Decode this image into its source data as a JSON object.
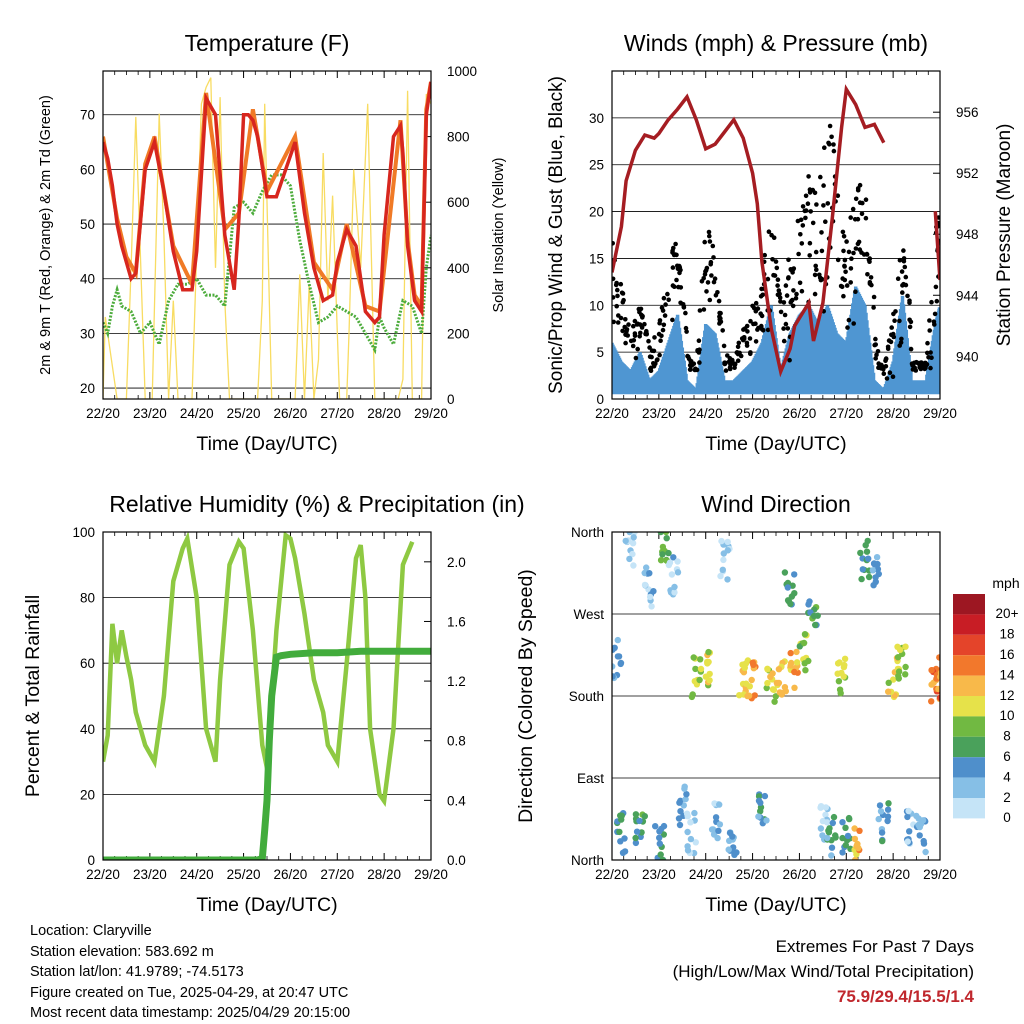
{
  "x_ticks": [
    "22/20",
    "23/20",
    "24/20",
    "25/20",
    "26/20",
    "27/20",
    "28/20",
    "29/20"
  ],
  "info": {
    "location": "Location: Claryville",
    "elevation": "Station elevation: 583.692 m",
    "latlon": "Station lat/lon: 41.9789; -74.5173",
    "created": "Figure created on Tue, 2025-04-29, at 20:47 UTC",
    "recent": "Most recent data timestamp: 2025/04/29 20:15:00"
  },
  "extremes": {
    "title": "Extremes For Past 7 Days",
    "subtitle": "(High/Low/Max Wind/Total Precipitation)",
    "values": "75.9/29.4/15.5/1.4"
  },
  "chart_data": [
    {
      "type": "line",
      "title": "Temperature (F)",
      "xlabel": "Time (Day/UTC)",
      "ylabel": "2m & 9m T (Red, Orange) & 2m Td (Green)",
      "ylabel_right": "Solar Insolation (Yellow)",
      "x_unit": "days since 22/20",
      "xlim": [
        0,
        7
      ],
      "ylim": [
        18,
        78
      ],
      "yticks": [
        20,
        30,
        40,
        50,
        60,
        70
      ],
      "ylim_right": [
        0,
        1000
      ],
      "yticks_right": [
        0,
        200,
        400,
        600,
        800,
        1000
      ],
      "colors": {
        "t2m": "#d7261e",
        "t9m": "#f07a26",
        "td": "#4dac3c",
        "solar": "#f8dc62"
      },
      "series": [
        {
          "name": "2m T",
          "x": [
            0,
            0.1,
            0.2,
            0.3,
            0.4,
            0.5,
            0.6,
            0.7,
            0.9,
            1.1,
            1.3,
            1.5,
            1.7,
            1.9,
            2.0,
            2.2,
            2.4,
            2.6,
            2.8,
            2.9,
            3.0,
            3.1,
            3.2,
            3.3,
            3.5,
            3.7,
            3.9,
            4.1,
            4.3,
            4.5,
            4.7,
            4.9,
            5.0,
            5.2,
            5.4,
            5.6,
            5.8,
            5.9,
            6.0,
            6.2,
            6.35,
            6.4,
            6.5,
            6.65,
            6.8,
            6.9,
            7.0
          ],
          "values": [
            65,
            62,
            57,
            50,
            46,
            43,
            40,
            41,
            60,
            65,
            56,
            45,
            38,
            38,
            45,
            73,
            70,
            48,
            38,
            51,
            70,
            70,
            69,
            66,
            55,
            55,
            60,
            65,
            52,
            42,
            36,
            37,
            43,
            49,
            46,
            34,
            32,
            33,
            48,
            66,
            68,
            63,
            46,
            36,
            34,
            70,
            76
          ]
        },
        {
          "name": "9m T",
          "x": [
            0,
            0.3,
            0.5,
            0.7,
            0.9,
            1.1,
            1.5,
            1.9,
            2.2,
            2.6,
            2.9,
            3.2,
            3.5,
            4.1,
            4.5,
            4.9,
            5.2,
            5.6,
            5.9,
            6.35,
            6.5,
            6.65,
            6.8,
            6.9,
            7.0
          ],
          "values": [
            66,
            51,
            44,
            41,
            61,
            66,
            46,
            39,
            74,
            49,
            52,
            71,
            56,
            66,
            43,
            38,
            50,
            35,
            34,
            69,
            47,
            37,
            35,
            71,
            76
          ]
        },
        {
          "name": "2m Td",
          "x": [
            0,
            0.1,
            0.2,
            0.3,
            0.4,
            0.6,
            0.8,
            1.0,
            1.2,
            1.4,
            1.6,
            1.8,
            2.0,
            2.2,
            2.4,
            2.6,
            2.8,
            3.0,
            3.2,
            3.4,
            3.6,
            3.8,
            4.0,
            4.2,
            4.4,
            4.6,
            4.8,
            5.0,
            5.2,
            5.4,
            5.6,
            5.8,
            5.9,
            6.0,
            6.2,
            6.4,
            6.6,
            6.8,
            6.9,
            7.0
          ],
          "values": [
            32,
            30,
            35,
            38,
            35,
            34,
            30,
            32,
            28,
            36,
            39,
            39,
            40,
            37,
            37,
            35,
            53,
            54,
            52,
            56,
            59,
            59,
            57,
            47,
            39,
            32,
            33,
            35,
            34,
            33,
            30,
            27,
            33,
            31,
            28,
            36,
            35,
            30,
            42,
            48
          ]
        },
        {
          "name": "Solar",
          "axis": "right",
          "x": [
            0,
            0.05,
            0.3,
            0.5,
            0.6,
            0.7,
            0.9,
            1.05,
            1.2,
            1.3,
            1.4,
            1.5,
            1.6,
            1.7,
            1.9,
            2.1,
            2.2,
            2.3,
            2.4,
            2.5,
            2.6,
            2.7,
            2.8,
            2.9,
            3.2,
            3.3,
            3.4,
            3.45,
            3.55,
            3.6,
            3.7,
            3.8,
            4.1,
            4.2,
            4.3,
            4.4,
            4.5,
            4.6,
            4.7,
            4.8,
            4.9,
            5.05,
            5.2,
            5.25,
            5.35,
            5.5,
            5.65,
            5.8,
            5.95,
            6.2,
            6.3,
            6.4,
            6.5,
            6.6,
            6.65,
            6.8,
            6.9,
            7.0
          ],
          "values": [
            0,
            250,
            0,
            0,
            400,
            860,
            0,
            0,
            870,
            500,
            0,
            300,
            0,
            0,
            0,
            900,
            950,
            980,
            400,
            920,
            300,
            0,
            0,
            0,
            0,
            0,
            300,
            900,
            300,
            0,
            0,
            0,
            0,
            380,
            0,
            350,
            0,
            120,
            750,
            300,
            620,
            0,
            0,
            200,
            700,
            400,
            900,
            0,
            0,
            0,
            0,
            60,
            940,
            0,
            0,
            0,
            930,
            900
          ]
        }
      ]
    },
    {
      "type": "line",
      "title": "Winds (mph) & Pressure (mb)",
      "xlabel": "Time (Day/UTC)",
      "ylabel": "Sonic/Prop Wind & Gust (Blue, Black)",
      "ylabel_right": "Station Pressure (Maroon)",
      "x_unit": "days since 22/20",
      "xlim": [
        0,
        7
      ],
      "ylim": [
        0,
        35
      ],
      "yticks": [
        0,
        5,
        10,
        15,
        20,
        25,
        30
      ],
      "ylim_right": [
        937.2,
        958.7
      ],
      "yticks_right": [
        940,
        944,
        948,
        952,
        956
      ],
      "colors": {
        "wind": "#4f96d2",
        "gust": "#000000",
        "pressure": "#a51d22"
      },
      "series": [
        {
          "name": "Wind",
          "x": [
            0,
            0.2,
            0.4,
            0.6,
            0.8,
            1.0,
            1.2,
            1.4,
            1.6,
            1.8,
            2.0,
            2.2,
            2.4,
            2.6,
            2.8,
            3.0,
            3.2,
            3.4,
            3.6,
            3.8,
            4.0,
            4.2,
            4.4,
            4.6,
            4.8,
            5.0,
            5.2,
            5.4,
            5.6,
            5.8,
            6.0,
            6.2,
            6.4,
            6.6,
            6.7,
            6.9,
            7.0
          ],
          "values": [
            6,
            4,
            3,
            5,
            2,
            3,
            6,
            9,
            2,
            1,
            8,
            7,
            2,
            2,
            3,
            4,
            6,
            10,
            3,
            7,
            9,
            10,
            8,
            10,
            7,
            6,
            12,
            10,
            2,
            1,
            4,
            11,
            2,
            2,
            2,
            8,
            10
          ]
        },
        {
          "name": "Gust",
          "x": [
            0,
            0.2,
            0.4,
            0.6,
            0.8,
            1.0,
            1.2,
            1.4,
            1.6,
            1.8,
            2.0,
            2.2,
            2.4,
            2.6,
            2.8,
            3.0,
            3.2,
            3.4,
            3.6,
            3.8,
            4.0,
            4.2,
            4.4,
            4.6,
            4.8,
            5.0,
            5.2,
            5.4,
            5.6,
            5.8,
            6.0,
            6.2,
            6.4,
            6.6,
            6.7,
            6.9,
            7.0
          ],
          "values": [
            18,
            12,
            8,
            10,
            6,
            8,
            14,
            18,
            5,
            4,
            19,
            16,
            5,
            4,
            8,
            10,
            13,
            21,
            10,
            16,
            20,
            24,
            22,
            32,
            25,
            18,
            22,
            24,
            7,
            3,
            9,
            18,
            4,
            4,
            4,
            18,
            22
          ]
        },
        {
          "name": "Pressure",
          "axis": "right",
          "x": [
            0,
            0.2,
            0.3,
            0.5,
            0.7,
            0.9,
            1.0,
            1.2,
            1.4,
            1.6,
            1.8,
            2.0,
            2.2,
            2.4,
            2.6,
            2.8,
            3.0,
            3.1,
            3.2,
            3.4,
            3.6,
            3.8,
            3.9,
            4.0,
            4.2,
            4.3,
            4.5,
            4.7,
            4.9,
            5.0,
            5.2,
            5.4,
            5.6,
            5.8,
            6.0,
            6.2,
            6.4,
            6.6,
            6.8,
            6.9,
            7.0
          ],
          "values": [
            945.5,
            948.5,
            951.5,
            953.5,
            954.5,
            954.3,
            954.6,
            955.5,
            956.2,
            957.0,
            955.5,
            953.6,
            953.9,
            954.7,
            955.5,
            954.3,
            952.0,
            950.0,
            946.2,
            941.8,
            939.0,
            940.5,
            942.0,
            942.5,
            943.5,
            941.0,
            943.5,
            949.0,
            955.0,
            957.5,
            956.5,
            955.0,
            955.2,
            954.0,
            null,
            null,
            null,
            null,
            null,
            949.5,
            945.0
          ]
        }
      ]
    },
    {
      "type": "line",
      "title": "Relative Humidity (%) & Precipitation (in)",
      "xlabel": "Time (Day/UTC)",
      "ylabel": "Percent & Total Rainfall",
      "x_unit": "days since 22/20",
      "xlim": [
        0,
        7
      ],
      "ylim": [
        0,
        100
      ],
      "yticks": [
        0,
        20,
        40,
        60,
        80,
        100
      ],
      "ylim_right": [
        0,
        2.2
      ],
      "yticks_right": [
        0.0,
        0.4,
        0.8,
        1.2,
        1.6,
        2.0
      ],
      "colors": {
        "rh": "#8ec942",
        "precip": "#42ac3c"
      },
      "series": [
        {
          "name": "RH",
          "x": [
            0,
            0.1,
            0.2,
            0.3,
            0.4,
            0.5,
            0.6,
            0.7,
            0.8,
            0.9,
            1.1,
            1.3,
            1.5,
            1.7,
            1.8,
            2.0,
            2.2,
            2.4,
            2.5,
            2.7,
            2.9,
            3.0,
            3.2,
            3.4,
            3.5,
            3.7,
            3.9,
            4.0,
            4.1,
            4.3,
            4.5,
            4.7,
            4.8,
            5.0,
            5.2,
            5.4,
            5.5,
            5.6,
            5.7,
            5.9,
            6.0,
            6.2,
            6.4,
            6.6
          ],
          "values": [
            30,
            38,
            72,
            60,
            70,
            62,
            55,
            45,
            40,
            35,
            30,
            50,
            85,
            95,
            98,
            80,
            40,
            30,
            55,
            90,
            97,
            95,
            70,
            35,
            28,
            70,
            99,
            98,
            92,
            75,
            55,
            45,
            35,
            30,
            60,
            92,
            96,
            80,
            40,
            20,
            18,
            40,
            90,
            97
          ]
        },
        {
          "name": "Precipitation",
          "axis": "right",
          "x": [
            0,
            3.0,
            3.3,
            3.4,
            3.45,
            3.5,
            3.55,
            3.6,
            3.7,
            3.8,
            4.0,
            4.5,
            5.0,
            5.5,
            6.0,
            6.5,
            7.0
          ],
          "values": [
            0,
            0,
            0,
            0.01,
            0.2,
            0.4,
            0.8,
            1.1,
            1.36,
            1.37,
            1.38,
            1.39,
            1.39,
            1.4,
            1.4,
            1.4,
            1.4
          ]
        }
      ]
    },
    {
      "type": "scatter",
      "title": "Wind Direction",
      "xlabel": "Time (Day/UTC)",
      "ylabel": "Direction (Colored By Speed)",
      "x_unit": "days since 22/20",
      "xlim": [
        0,
        7
      ],
      "ylim": [
        0,
        360
      ],
      "ytick_labels": [
        "North",
        "East",
        "South",
        "West",
        "North"
      ],
      "ytick_values": [
        0,
        90,
        180,
        270,
        360
      ],
      "legend_title": "mph",
      "legend_labels": [
        "0",
        "2",
        "4",
        "6",
        "8",
        "10",
        "12",
        "14",
        "16",
        "18",
        "20+"
      ],
      "legend_colors": [
        "#c5e4f7",
        "#86bfe6",
        "#4f8fcb",
        "#4aa15b",
        "#71b942",
        "#e6e24a",
        "#f8b94a",
        "#f2782c",
        "#e4442a",
        "#c81d25",
        "#9d1722"
      ],
      "series": [
        {
          "name": "Direction",
          "x": [
            0.1,
            0.2,
            0.4,
            0.6,
            0.8,
            1.0,
            1.1,
            1.3,
            1.5,
            1.7,
            1.8,
            2.0,
            2.2,
            2.4,
            2.6,
            2.8,
            3.0,
            3.2,
            3.4,
            3.6,
            3.8,
            3.9,
            4.1,
            4.3,
            4.5,
            4.7,
            4.9,
            5.0,
            5.2,
            5.4,
            5.6,
            5.8,
            6.0,
            6.2,
            6.4,
            6.6,
            6.9,
            7.0
          ],
          "values": [
            220,
            30,
            340,
            40,
            300,
            20,
            350,
            310,
            60,
            30,
            200,
            210,
            40,
            330,
            20,
            195,
            200,
            50,
            190,
            200,
            300,
            210,
            230,
            270,
            40,
            25,
            200,
            30,
            20,
            330,
            310,
            40,
            200,
            220,
            35,
            30,
            195,
            200
          ],
          "speeds": [
            3,
            5,
            1,
            6,
            2,
            5,
            7,
            2,
            3,
            1,
            9,
            10,
            2,
            1,
            3,
            11,
            12,
            4,
            10,
            11,
            5,
            12,
            8,
            6,
            1,
            4,
            9,
            6,
            12,
            5,
            3,
            4,
            10,
            9,
            2,
            3,
            14,
            13
          ]
        }
      ]
    }
  ]
}
